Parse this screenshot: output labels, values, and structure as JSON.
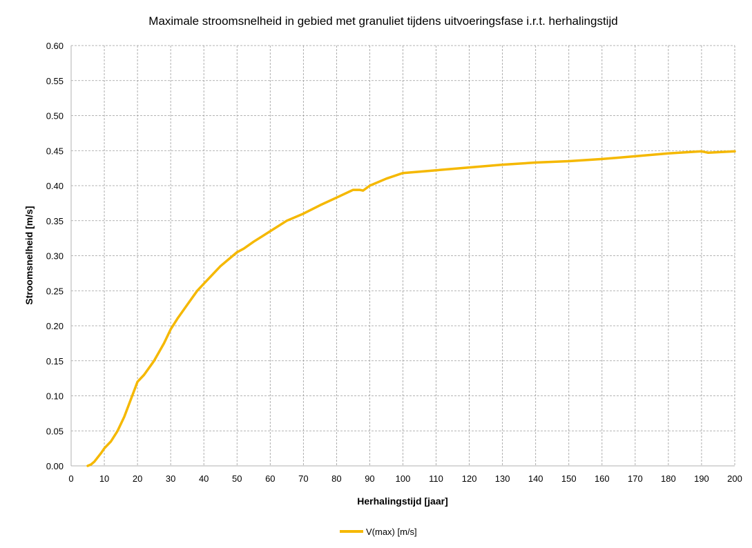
{
  "chart_data": {
    "type": "line",
    "title": "Maximale stroomsnelheid in gebied met granuliet tijdens uitvoeringsfase i.r.t. herhalingstijd",
    "xlabel": "Herhalingstijd [jaar]",
    "ylabel": "Stroomsnelheid [m/s]",
    "xlim": [
      0,
      200
    ],
    "ylim": [
      0,
      0.6
    ],
    "x_ticks": [
      "0",
      "10",
      "20",
      "30",
      "40",
      "50",
      "60",
      "70",
      "80",
      "90",
      "100",
      "110",
      "120",
      "130",
      "140",
      "150",
      "160",
      "170",
      "180",
      "190",
      "200"
    ],
    "y_ticks": [
      "0.00",
      "0.05",
      "0.10",
      "0.15",
      "0.20",
      "0.25",
      "0.30",
      "0.35",
      "0.40",
      "0.45",
      "0.50",
      "0.55",
      "0.60"
    ],
    "grid": true,
    "legend_position": "bottom",
    "series": [
      {
        "name": "V(max) [m/s]",
        "color": "#f5b800",
        "x": [
          5,
          6,
          7,
          8,
          9,
          10,
          12,
          14,
          16,
          18,
          20,
          22,
          25,
          28,
          30,
          32,
          35,
          38,
          40,
          45,
          50,
          52,
          55,
          60,
          65,
          70,
          75,
          80,
          85,
          87,
          88,
          90,
          95,
          100,
          110,
          120,
          130,
          140,
          150,
          160,
          170,
          180,
          190,
          192,
          200
        ],
        "y": [
          0.0,
          0.002,
          0.006,
          0.012,
          0.018,
          0.025,
          0.035,
          0.05,
          0.07,
          0.095,
          0.12,
          0.13,
          0.15,
          0.175,
          0.195,
          0.21,
          0.23,
          0.25,
          0.26,
          0.285,
          0.305,
          0.31,
          0.32,
          0.335,
          0.35,
          0.36,
          0.372,
          0.383,
          0.394,
          0.394,
          0.393,
          0.4,
          0.41,
          0.418,
          0.422,
          0.426,
          0.43,
          0.433,
          0.435,
          0.438,
          0.442,
          0.446,
          0.449,
          0.447,
          0.449
        ]
      }
    ]
  }
}
